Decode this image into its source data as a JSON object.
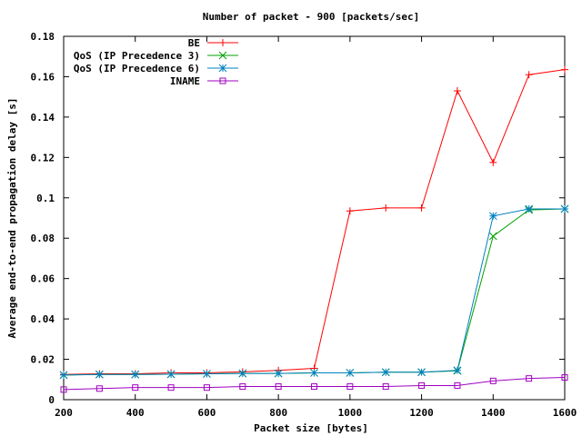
{
  "chart_data": {
    "type": "line",
    "title": "Number of packet - 900 [packets/sec]",
    "xlabel": "Packet size [bytes]",
    "ylabel": "Average end-to-end propagation delay [s]",
    "xlim": [
      200,
      1600
    ],
    "ylim": [
      0,
      0.18
    ],
    "xticks": [
      "200",
      "400",
      "600",
      "800",
      "1000",
      "1200",
      "1400",
      "1600"
    ],
    "yticks": [
      "0",
      "0.02",
      "0.04",
      "0.06",
      "0.08",
      "0.1",
      "0.12",
      "0.14",
      "0.16",
      "0.18"
    ],
    "x": [
      200,
      300,
      400,
      500,
      600,
      700,
      800,
      900,
      1000,
      1100,
      1200,
      1300,
      1400,
      1500,
      1600
    ],
    "legend_position": "top-left",
    "grid": false,
    "series": [
      {
        "name": "BE",
        "color": "#ff0000",
        "marker": "plus",
        "values": [
          0.0125,
          0.0128,
          0.0128,
          0.0133,
          0.0133,
          0.0138,
          0.0145,
          0.0155,
          0.0935,
          0.095,
          0.095,
          0.153,
          0.1175,
          0.161,
          0.1635
        ]
      },
      {
        "name": "QoS (IP Precedence 3)",
        "color": "#00a000",
        "marker": "cross",
        "values": [
          0.0122,
          0.0125,
          0.0125,
          0.0126,
          0.0128,
          0.013,
          0.013,
          0.0133,
          0.0133,
          0.0136,
          0.0136,
          0.0143,
          0.081,
          0.094,
          0.0945
        ]
      },
      {
        "name": "QoS (IP Precedence 6)",
        "color": "#0080c0",
        "marker": "star",
        "values": [
          0.0122,
          0.0125,
          0.0125,
          0.0126,
          0.0128,
          0.013,
          0.013,
          0.0133,
          0.0133,
          0.0136,
          0.0136,
          0.0145,
          0.091,
          0.0945,
          0.0945
        ]
      },
      {
        "name": "INAME",
        "color": "#a000c0",
        "marker": "square",
        "values": [
          0.005,
          0.0055,
          0.006,
          0.006,
          0.006,
          0.0065,
          0.0065,
          0.0065,
          0.0065,
          0.0065,
          0.007,
          0.007,
          0.0093,
          0.0105,
          0.011
        ]
      }
    ]
  }
}
